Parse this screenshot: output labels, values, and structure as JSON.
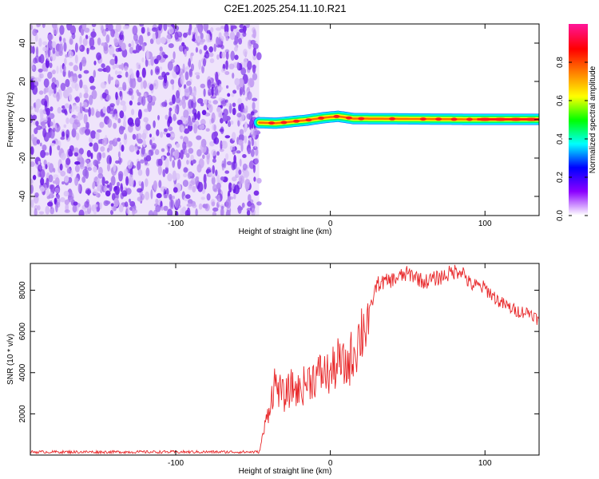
{
  "title": "C2E1.2025.254.11.10.R21",
  "chart_data": [
    {
      "type": "heatmap",
      "xlabel": "Height of straight line (km)",
      "ylabel": "Frequency (Hz)",
      "xlim": [
        -194,
        135
      ],
      "ylim": [
        -50,
        50
      ],
      "xticks": [
        -100,
        0,
        100
      ],
      "yticks": [
        -40,
        -20,
        0,
        20,
        40
      ],
      "noise_region_x": [
        -194,
        -46
      ],
      "signal_line_frequency_hz": [
        {
          "x": -46,
          "f": -1.5
        },
        {
          "x": -35,
          "f": -1.8
        },
        {
          "x": -25,
          "f": -1.0
        },
        {
          "x": -15,
          "f": -0.2
        },
        {
          "x": -5,
          "f": 1.0
        },
        {
          "x": 5,
          "f": 1.8
        },
        {
          "x": 15,
          "f": 0.6
        },
        {
          "x": 40,
          "f": 0.5
        },
        {
          "x": 90,
          "f": 0.2
        },
        {
          "x": 135,
          "f": 0.2
        }
      ],
      "colorbar": {
        "label": "Normalized spectral amplitude",
        "range": [
          0,
          1
        ],
        "ticks": [
          "0.0",
          "0.2",
          "0.4",
          "0.6",
          "0.8"
        ],
        "colormap": [
          "#ffffff",
          "#8b00ff",
          "#0000ff",
          "#00ffff",
          "#00ff00",
          "#ffff00",
          "#ff8000",
          "#ff0000",
          "#ff1493"
        ]
      }
    },
    {
      "type": "line",
      "xlabel": "Height of straight line (km)",
      "ylabel": "SNR (10 * v/v)",
      "xlim": [
        -194,
        135
      ],
      "ylim": [
        0,
        9300
      ],
      "xticks": [
        -100,
        0,
        100
      ],
      "yticks": [
        2000,
        4000,
        6000,
        8000
      ],
      "color": "#e8282a",
      "series": [
        {
          "x": [
            -194,
            -150,
            -100,
            -60,
            -46,
            -42,
            -36,
            -30,
            -25,
            -20,
            -15,
            -10,
            -5,
            0,
            5,
            10,
            15,
            20,
            25,
            30,
            40,
            50,
            55,
            60,
            70,
            80,
            85,
            90,
            100,
            110,
            120,
            130,
            135
          ],
          "values": [
            150,
            150,
            150,
            150,
            150,
            1500,
            3500,
            2800,
            3300,
            3100,
            3600,
            3800,
            4000,
            3900,
            4500,
            4200,
            5000,
            6000,
            6800,
            8300,
            8500,
            8800,
            8700,
            8400,
            8600,
            8900,
            9000,
            8300,
            8100,
            7400,
            7000,
            6900,
            6500
          ]
        }
      ]
    }
  ]
}
